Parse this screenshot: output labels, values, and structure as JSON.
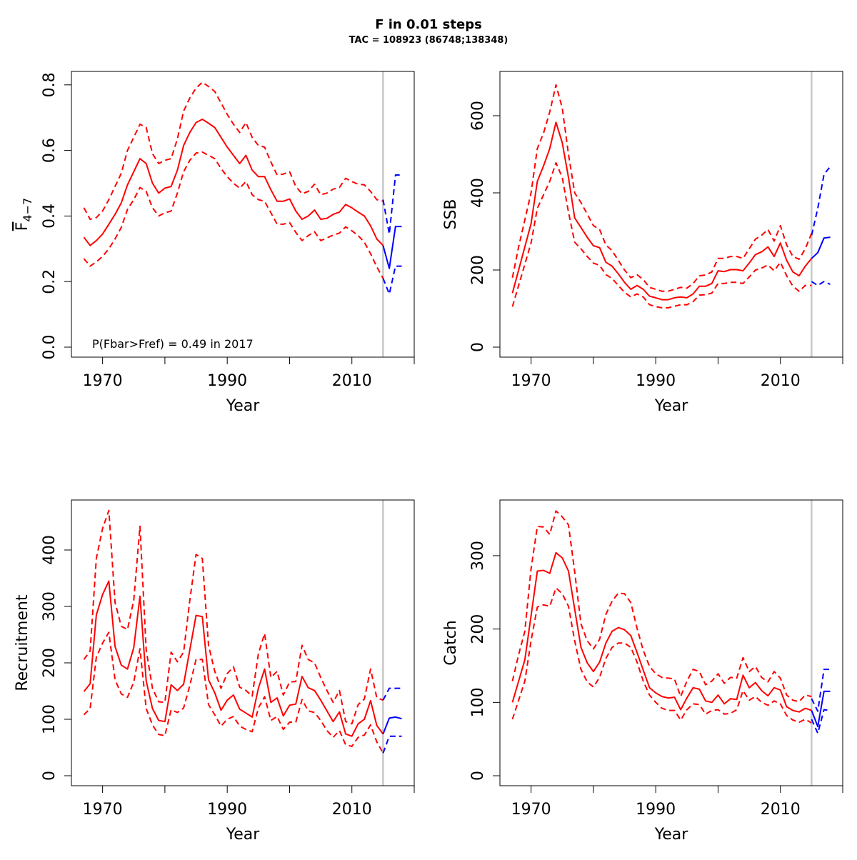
{
  "title": "F in 0.01 steps",
  "subtitle": "TAC = 108923 (86748;138348)",
  "colors": {
    "history": "#ff0000",
    "forecast": "#0000ff",
    "divider": "#c8c8c8",
    "axis": "#000000"
  },
  "chart_data": [
    {
      "type": "line",
      "ylabel_main": "F",
      "ylabel_sub": "4−7",
      "xlabel": "Year",
      "xlim": [
        1965,
        2020
      ],
      "ylim": [
        -0.0305,
        0.841
      ],
      "yticks": [
        0.0,
        0.2,
        0.4,
        0.6,
        0.8
      ],
      "ytick_labels": [
        "0.0",
        "0.2",
        "0.4",
        "0.6",
        "0.8"
      ],
      "xticks": [
        1970,
        1980,
        1990,
        2000,
        2010,
        2020
      ],
      "xtick_labels": [
        "1970",
        "",
        "1990",
        "",
        "2010",
        ""
      ],
      "divider_year": 2015,
      "annotation": "P(Fbar>Fref) = 0.49  in 2017",
      "history": {
        "start_year": 1967,
        "mean": [
          0.335,
          0.31,
          0.325,
          0.345,
          0.375,
          0.405,
          0.44,
          0.495,
          0.535,
          0.575,
          0.56,
          0.5,
          0.47,
          0.485,
          0.49,
          0.54,
          0.615,
          0.655,
          0.685,
          0.695,
          0.683,
          0.67,
          0.64,
          0.61,
          0.585,
          0.56,
          0.585,
          0.54,
          0.52,
          0.52,
          0.48,
          0.445,
          0.445,
          0.452,
          0.415,
          0.39,
          0.4,
          0.418,
          0.39,
          0.393,
          0.405,
          0.412,
          0.435,
          0.425,
          0.412,
          0.4,
          0.37,
          0.33,
          0.31
        ],
        "upper": [
          0.425,
          0.39,
          0.395,
          0.415,
          0.45,
          0.49,
          0.53,
          0.6,
          0.64,
          0.68,
          0.67,
          0.59,
          0.56,
          0.57,
          0.575,
          0.635,
          0.72,
          0.76,
          0.79,
          0.808,
          0.795,
          0.78,
          0.745,
          0.71,
          0.68,
          0.655,
          0.685,
          0.64,
          0.615,
          0.61,
          0.565,
          0.525,
          0.528,
          0.535,
          0.49,
          0.468,
          0.475,
          0.497,
          0.465,
          0.47,
          0.482,
          0.487,
          0.515,
          0.505,
          0.497,
          0.495,
          0.475,
          0.45,
          0.445
        ],
        "lower": [
          0.27,
          0.247,
          0.26,
          0.277,
          0.3,
          0.33,
          0.365,
          0.42,
          0.45,
          0.487,
          0.475,
          0.425,
          0.4,
          0.41,
          0.415,
          0.47,
          0.535,
          0.57,
          0.592,
          0.595,
          0.585,
          0.575,
          0.545,
          0.52,
          0.5,
          0.485,
          0.505,
          0.465,
          0.45,
          0.445,
          0.41,
          0.375,
          0.375,
          0.38,
          0.35,
          0.325,
          0.34,
          0.352,
          0.325,
          0.333,
          0.342,
          0.348,
          0.367,
          0.355,
          0.34,
          0.32,
          0.285,
          0.245,
          0.21
        ]
      },
      "forecast": {
        "start_year": 2015,
        "mean": [
          0.31,
          0.24,
          0.368,
          0.368
        ],
        "upper": [
          0.45,
          0.345,
          0.525,
          0.525
        ],
        "lower": [
          0.21,
          0.162,
          0.247,
          0.247
        ]
      }
    },
    {
      "type": "line",
      "ylabel_main": "SSB",
      "xlabel": "Year",
      "xlim": [
        1965,
        2020
      ],
      "ylim": [
        -25.9,
        714.8
      ],
      "yticks": [
        0,
        200,
        400,
        600
      ],
      "ytick_labels": [
        "0",
        "200",
        "400",
        "600"
      ],
      "xticks": [
        1970,
        1980,
        1990,
        2000,
        2010,
        2020
      ],
      "xtick_labels": [
        "1970",
        "",
        "1990",
        "",
        "2010",
        ""
      ],
      "divider_year": 2015,
      "history": {
        "start_year": 1967,
        "mean": [
          140,
          200,
          260,
          320,
          430,
          470,
          515,
          583,
          530,
          440,
          335,
          310,
          285,
          263,
          258,
          220,
          210,
          190,
          168,
          150,
          160,
          150,
          132,
          128,
          123,
          123,
          128,
          130,
          128,
          138,
          158,
          158,
          165,
          198,
          196,
          201,
          201,
          198,
          218,
          240,
          247,
          260,
          235,
          270,
          225,
          195,
          185,
          210,
          230
        ],
        "upper": [
          180,
          260,
          330,
          400,
          515,
          555,
          610,
          680,
          620,
          500,
          400,
          375,
          345,
          315,
          305,
          265,
          250,
          225,
          200,
          180,
          188,
          175,
          155,
          150,
          145,
          145,
          150,
          155,
          153,
          165,
          185,
          187,
          195,
          230,
          230,
          235,
          235,
          230,
          255,
          280,
          290,
          305,
          275,
          315,
          265,
          235,
          228,
          255,
          295
        ],
        "lower": [
          105,
          160,
          215,
          270,
          360,
          395,
          430,
          478,
          440,
          350,
          272,
          255,
          235,
          218,
          212,
          188,
          178,
          160,
          142,
          130,
          138,
          130,
          110,
          105,
          102,
          102,
          106,
          110,
          110,
          118,
          135,
          136,
          140,
          165,
          165,
          168,
          168,
          165,
          182,
          200,
          205,
          213,
          198,
          220,
          185,
          158,
          145,
          160,
          160
        ]
      },
      "forecast": {
        "start_year": 2015,
        "mean": [
          230,
          245,
          283,
          285
        ],
        "upper": [
          290,
          360,
          448,
          468
        ],
        "lower": [
          170,
          160,
          170,
          163
        ]
      }
    },
    {
      "type": "line",
      "ylabel_main": "Recruitment",
      "xlabel": "Year",
      "xlim": [
        1965,
        2020
      ],
      "ylim": [
        -17.7,
        488.6
      ],
      "yticks": [
        0,
        100,
        200,
        300,
        400
      ],
      "ytick_labels": [
        "0",
        "100",
        "200",
        "300",
        "400"
      ],
      "xticks": [
        1970,
        1980,
        1990,
        2000,
        2010,
        2020
      ],
      "xtick_labels": [
        "1970",
        "",
        "1990",
        "",
        "2010",
        ""
      ],
      "divider_year": 2015,
      "history": {
        "start_year": 1967,
        "mean": [
          149,
          163,
          285,
          321,
          345,
          229,
          196,
          189,
          227,
          318,
          168,
          119,
          98,
          96,
          161,
          151,
          162,
          223,
          284,
          282,
          170,
          147,
          116,
          134,
          143,
          118,
          111,
          104,
          155,
          189,
          130,
          138,
          106,
          125,
          127,
          176,
          156,
          151,
          134,
          115,
          96,
          113,
          74,
          70,
          92,
          100,
          133,
          89,
          74
        ],
        "upper": [
          206,
          221,
          385,
          438,
          470,
          307,
          265,
          259,
          311,
          442,
          223,
          155,
          131,
          130,
          219,
          202,
          219,
          311,
          392,
          385,
          231,
          185,
          155,
          181,
          193,
          157,
          151,
          141,
          216,
          252,
          174,
          185,
          143,
          166,
          167,
          231,
          206,
          200,
          174,
          151,
          130,
          151,
          96,
          92,
          126,
          136,
          189,
          138,
          134
        ],
        "lower": [
          108,
          119,
          210,
          235,
          254,
          170,
          145,
          139,
          166,
          225,
          119,
          90,
          73,
          71,
          117,
          112,
          120,
          160,
          206,
          206,
          126,
          108,
          88,
          100,
          105,
          88,
          82,
          78,
          120,
          140,
          98,
          105,
          82,
          95,
          95,
          135,
          115,
          112,
          98,
          80,
          68,
          80,
          55,
          52,
          68,
          72,
          90,
          60,
          40
        ]
      },
      "forecast": {
        "start_year": 2015,
        "mean": [
          74,
          102,
          104,
          101
        ],
        "upper": [
          134,
          155,
          155,
          155
        ],
        "lower": [
          40,
          70,
          70,
          70
        ]
      }
    },
    {
      "type": "line",
      "ylabel_main": "Catch",
      "xlabel": "Year",
      "xlim": [
        1965,
        2020
      ],
      "ylim": [
        -13.6,
        375.9
      ],
      "yticks": [
        0,
        100,
        200,
        300
      ],
      "ytick_labels": [
        "0",
        "100",
        "200",
        "300"
      ],
      "xticks": [
        1970,
        1980,
        1990,
        2000,
        2010,
        2020
      ],
      "xtick_labels": [
        "1970",
        "",
        "1990",
        "",
        "2010",
        ""
      ],
      "divider_year": 2015,
      "history": {
        "start_year": 1967,
        "mean": [
          100,
          129,
          158,
          218,
          279,
          280,
          276,
          304,
          297,
          279,
          227,
          175,
          154,
          142,
          155,
          181,
          197,
          202,
          199,
          191,
          168,
          144,
          120,
          113,
          108,
          106,
          107,
          90,
          106,
          120,
          118,
          102,
          100,
          110,
          98,
          105,
          104,
          137,
          120,
          127,
          116,
          109,
          120,
          117,
          94,
          89,
          87,
          92,
          89
        ],
        "upper": [
          129,
          165,
          197,
          282,
          340,
          339,
          329,
          361,
          353,
          342,
          278,
          207,
          184,
          173,
          186,
          220,
          238,
          249,
          248,
          236,
          201,
          171,
          149,
          139,
          134,
          133,
          132,
          108,
          129,
          145,
          142,
          124,
          129,
          139,
          126,
          134,
          133,
          161,
          142,
          149,
          134,
          128,
          142,
          133,
          110,
          103,
          101,
          110,
          108
        ],
        "lower": [
          77,
          103,
          129,
          184,
          230,
          233,
          231,
          256,
          248,
          231,
          184,
          145,
          128,
          121,
          134,
          160,
          175,
          181,
          181,
          175,
          155,
          129,
          110,
          100,
          92,
          89,
          89,
          76,
          90,
          98,
          97,
          84,
          89,
          90,
          84,
          85,
          90,
          116,
          103,
          108,
          100,
          96,
          102,
          98,
          82,
          76,
          73,
          77,
          72
        ]
      },
      "forecast": {
        "start_year": 2015,
        "mean": [
          89,
          67,
          115,
          115
        ],
        "upper": [
          105,
          88,
          145,
          145
        ],
        "lower": [
          77,
          58,
          90,
          89
        ]
      }
    }
  ]
}
